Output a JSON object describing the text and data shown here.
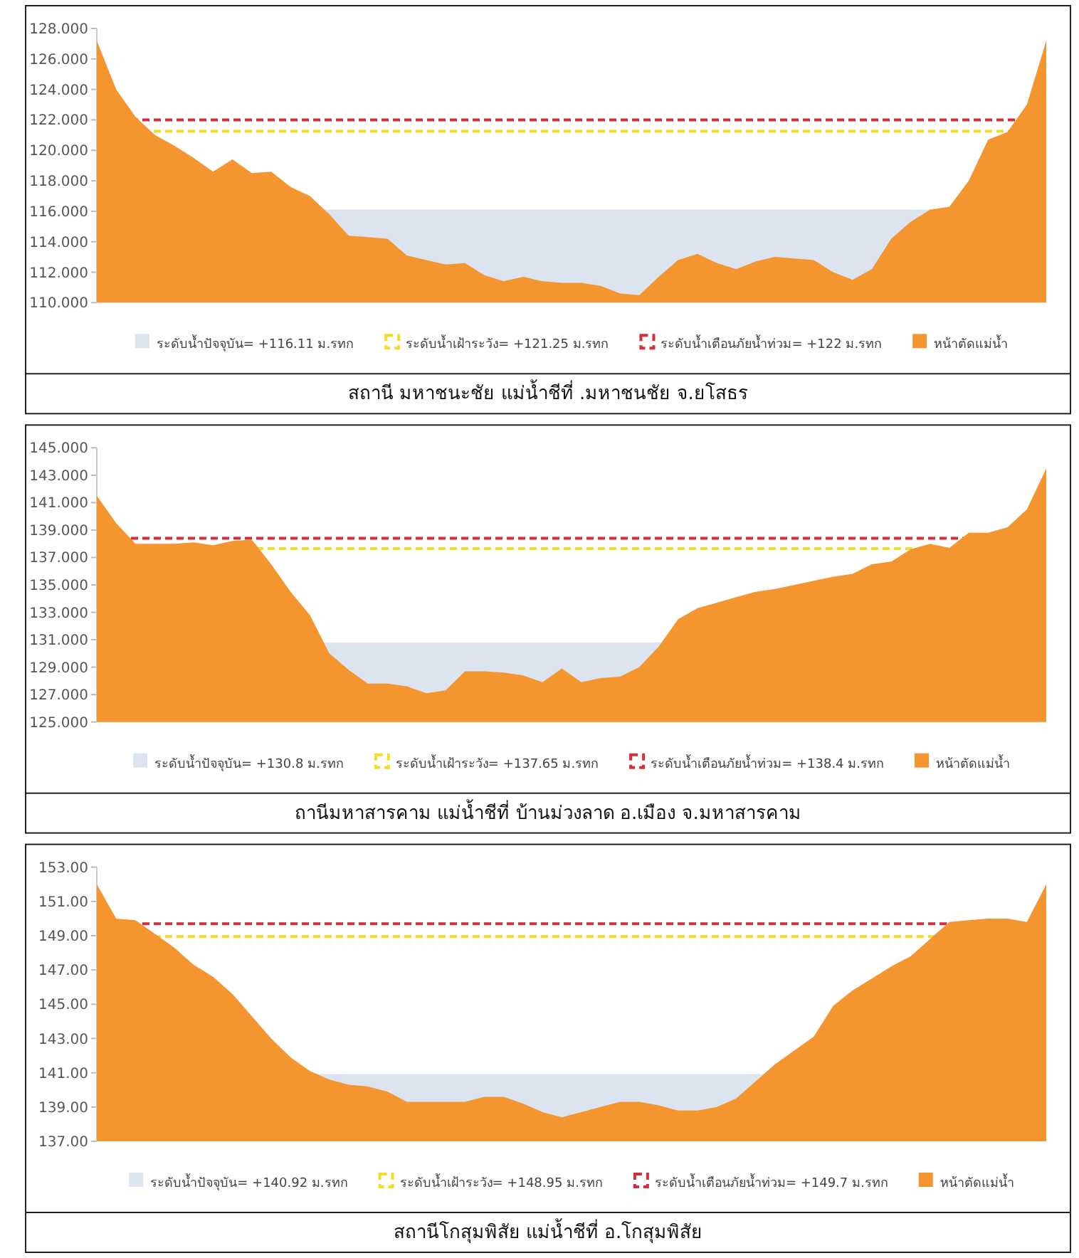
{
  "chart_data": [
    {
      "type": "area",
      "title": "สถานี มหาชนะชัย แม่น้ำชีที่ .มหาชนชัย จ.ยโสธร",
      "legend": "bottom",
      "categories": [
        null,
        null,
        null,
        null,
        null,
        null,
        null,
        null,
        null,
        null,
        null,
        null,
        null,
        null,
        null,
        null,
        null,
        null,
        null,
        null,
        null,
        null,
        null,
        null,
        null,
        null,
        null,
        null,
        null,
        null,
        null,
        null,
        null,
        null,
        null,
        null,
        null,
        null,
        null,
        null,
        null,
        null,
        null,
        null,
        null,
        null,
        null,
        null,
        null,
        null
      ],
      "ylim": [
        110,
        128
      ],
      "yticks": [
        {
          "value": 110,
          "label": "110.000"
        },
        {
          "value": 112,
          "label": "112.000"
        },
        {
          "value": 114,
          "label": "114.000"
        },
        {
          "value": 116,
          "label": "116.000"
        },
        {
          "value": 118,
          "label": "118.000"
        },
        {
          "value": 120,
          "label": "120.000"
        },
        {
          "value": 122,
          "label": "122.000"
        },
        {
          "value": 124,
          "label": "124.000"
        },
        {
          "value": 126,
          "label": "126.000"
        },
        {
          "value": 128,
          "label": "128.000"
        }
      ],
      "bands": [
        {
          "axis": "y",
          "from": 110,
          "to": 116.11,
          "label": "ระดับน้ำปัจจุบัน= +116.11 ม.รทก",
          "color": "#dbe4ef"
        }
      ],
      "ref_lines": [
        {
          "axis": "y",
          "value": 121.25,
          "label": "ระดับน้ำเฝ้าระวัง= +121.25 ม.รทก",
          "color": "#f2dc2c",
          "line_style": "dashed"
        },
        {
          "axis": "y",
          "value": 122,
          "label": "ระดับน้ำเตือนภัยน้ำท่วม= +122 ม.รทก",
          "color": "#d02f3c",
          "line_style": "dashed"
        }
      ],
      "series": [
        {
          "name": "หน้าตัดแม่น้ำ",
          "color": "#f4952f",
          "values": [
            127.2,
            124.0,
            122.2,
            121.0,
            120.3,
            119.5,
            118.6,
            119.4,
            118.5,
            118.6,
            117.6,
            117.0,
            115.8,
            114.4,
            114.3,
            114.2,
            113.1,
            112.8,
            112.5,
            112.6,
            111.8,
            111.4,
            111.7,
            111.4,
            111.3,
            111.3,
            111.1,
            110.6,
            110.5,
            111.7,
            112.8,
            113.2,
            112.6,
            112.2,
            112.7,
            113.0,
            112.9,
            112.8,
            112.0,
            111.5,
            112.2,
            114.2,
            115.3,
            116.1,
            116.3,
            118.0,
            120.7,
            121.2,
            123.0,
            127.2
          ]
        }
      ]
    },
    {
      "type": "area",
      "title": "ถานีมหาสารคาม แม่น้ำชีที่ บ้านม่วงลาด อ.เมือง จ.มหาสารคาม",
      "legend": "bottom",
      "categories": [
        null,
        null,
        null,
        null,
        null,
        null,
        null,
        null,
        null,
        null,
        null,
        null,
        null,
        null,
        null,
        null,
        null,
        null,
        null,
        null,
        null,
        null,
        null,
        null,
        null,
        null,
        null,
        null,
        null,
        null,
        null,
        null,
        null,
        null,
        null,
        null,
        null,
        null,
        null,
        null,
        null,
        null,
        null,
        null,
        null,
        null,
        null,
        null,
        null,
        null
      ],
      "ylim": [
        125,
        145
      ],
      "yticks": [
        {
          "value": 125,
          "label": "125.000"
        },
        {
          "value": 127,
          "label": "127.000"
        },
        {
          "value": 129,
          "label": "129.000"
        },
        {
          "value": 131,
          "label": "131.000"
        },
        {
          "value": 133,
          "label": "133.000"
        },
        {
          "value": 135,
          "label": "135.000"
        },
        {
          "value": 137,
          "label": "137.000"
        },
        {
          "value": 139,
          "label": "139.000"
        },
        {
          "value": 141,
          "label": "141.000"
        },
        {
          "value": 143,
          "label": "143.000"
        },
        {
          "value": 145,
          "label": "145.000"
        }
      ],
      "bands": [
        {
          "axis": "y",
          "from": 125,
          "to": 130.8,
          "label": "ระดับน้ำปัจจุบัน= +130.8 ม.รทก",
          "color": "#dbe4ef"
        }
      ],
      "ref_lines": [
        {
          "axis": "y",
          "value": 137.65,
          "label": "ระดับน้ำเฝ้าระวัง= +137.65 ม.รทก",
          "color": "#f2dc2c",
          "line_style": "dashed"
        },
        {
          "axis": "y",
          "value": 138.4,
          "label": "ระดับน้ำเตือนภัยน้ำท่วม= +138.4 ม.รทก",
          "color": "#d02f3c",
          "line_style": "dashed"
        }
      ],
      "series": [
        {
          "name": "หน้าตัดแม่น้ำ",
          "color": "#f4952f",
          "values": [
            141.5,
            139.5,
            138.0,
            138.0,
            138.0,
            138.1,
            137.9,
            138.2,
            138.3,
            136.5,
            134.5,
            132.8,
            130.0,
            128.8,
            127.8,
            127.8,
            127.6,
            127.1,
            127.3,
            128.7,
            128.7,
            128.6,
            128.4,
            127.9,
            128.9,
            127.9,
            128.2,
            128.3,
            129.0,
            130.5,
            132.5,
            133.3,
            133.7,
            134.1,
            134.5,
            134.7,
            135.0,
            135.3,
            135.6,
            135.8,
            136.5,
            136.7,
            137.6,
            138.0,
            137.7,
            138.8,
            138.8,
            139.2,
            140.5,
            143.5
          ]
        }
      ]
    },
    {
      "type": "area",
      "title": "สถานีโกสุมพิสัย แม่น้ำชีที่ อ.โกสุมพิสัย",
      "legend": "bottom",
      "categories": [
        null,
        null,
        null,
        null,
        null,
        null,
        null,
        null,
        null,
        null,
        null,
        null,
        null,
        null,
        null,
        null,
        null,
        null,
        null,
        null,
        null,
        null,
        null,
        null,
        null,
        null,
        null,
        null,
        null,
        null,
        null,
        null,
        null,
        null,
        null,
        null,
        null,
        null,
        null,
        null,
        null,
        null,
        null,
        null,
        null,
        null,
        null,
        null,
        null,
        null
      ],
      "ylim": [
        137,
        153
      ],
      "yticks": [
        {
          "value": 137,
          "label": "137.00"
        },
        {
          "value": 139,
          "label": "139.00"
        },
        {
          "value": 141,
          "label": "141.00"
        },
        {
          "value": 143,
          "label": "143.00"
        },
        {
          "value": 145,
          "label": "145.00"
        },
        {
          "value": 147,
          "label": "147.00"
        },
        {
          "value": 149,
          "label": "149.00"
        },
        {
          "value": 151,
          "label": "151.00"
        },
        {
          "value": 153,
          "label": "153.00"
        }
      ],
      "bands": [
        {
          "axis": "y",
          "from": 137,
          "to": 140.92,
          "label": "ระดับน้ำปัจจุบัน= +140.92 ม.รทก",
          "color": "#dbe4ef"
        }
      ],
      "ref_lines": [
        {
          "axis": "y",
          "value": 148.95,
          "label": "ระดับน้ำเฝ้าระวัง= +148.95 ม.รทก",
          "color": "#f2dc2c",
          "line_style": "dashed"
        },
        {
          "axis": "y",
          "value": 149.7,
          "label": "ระดับน้ำเตือนภัยน้ำท่วม= +149.7 ม.รทก",
          "color": "#d02f3c",
          "line_style": "dashed"
        }
      ],
      "series": [
        {
          "name": "หน้าตัดแม่น้ำ",
          "color": "#f4952f",
          "values": [
            152.0,
            150.0,
            149.9,
            149.1,
            148.3,
            147.3,
            146.6,
            145.6,
            144.3,
            143.0,
            141.9,
            141.1,
            140.6,
            140.3,
            140.2,
            139.9,
            139.3,
            139.3,
            139.3,
            139.3,
            139.6,
            139.6,
            139.2,
            138.7,
            138.4,
            138.7,
            139.0,
            139.3,
            139.3,
            139.1,
            138.8,
            138.8,
            139.0,
            139.5,
            140.5,
            141.5,
            142.3,
            143.1,
            144.9,
            145.8,
            146.5,
            147.2,
            147.8,
            148.8,
            149.8,
            149.9,
            150.0,
            150.0,
            149.8,
            152.0
          ]
        }
      ]
    }
  ]
}
